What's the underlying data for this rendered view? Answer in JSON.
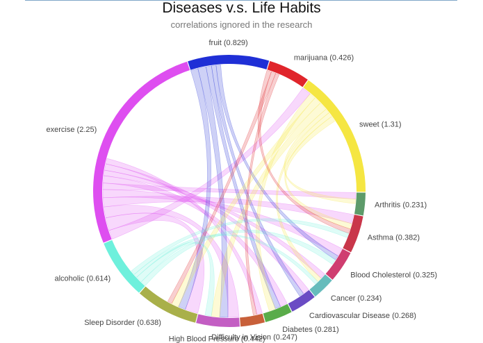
{
  "chart_data": {
    "type": "chord",
    "title": "Diseases v.s. Life Habits",
    "subtitle": "correlations ignored in the research",
    "groups": [
      {
        "name": "fruit",
        "label": "fruit (0.829)",
        "value": 0.829,
        "color": "#1f2fd6"
      },
      {
        "name": "marijuana",
        "label": "marijuana (0.426)",
        "value": 0.426,
        "color": "#e0252b"
      },
      {
        "name": "sweet",
        "label": "sweet (1.31)",
        "value": 1.31,
        "color": "#f5e642"
      },
      {
        "name": "Arthritis",
        "label": "Arthritis (0.231)",
        "value": 0.231,
        "color": "#5d9b6a"
      },
      {
        "name": "Asthma",
        "label": "Asthma (0.382)",
        "value": 0.382,
        "color": "#c9364a"
      },
      {
        "name": "Blood Cholesterol",
        "label": "Blood Cholesterol (0.325)",
        "value": 0.325,
        "color": "#cf3e70"
      },
      {
        "name": "Cancer",
        "label": "Cancer (0.234)",
        "value": 0.234,
        "color": "#66bcbc"
      },
      {
        "name": "Cardiovascular Disease",
        "label": "Cardiovascular Disease (0.268)",
        "value": 0.268,
        "color": "#6a4bc4"
      },
      {
        "name": "Diabetes",
        "label": "Diabetes (0.281)",
        "value": 0.281,
        "color": "#5aac4a"
      },
      {
        "name": "Difficulty in Vision",
        "label": "Difficulty in Vision (0.247)",
        "value": 0.247,
        "color": "#c8603a"
      },
      {
        "name": "High Blood Pressure",
        "label": "High Blood Pressure (0.442)",
        "value": 0.442,
        "color": "#c35ec3"
      },
      {
        "name": "Sleep Disorder",
        "label": "Sleep Disorder (0.638)",
        "value": 0.638,
        "color": "#a9b04a"
      },
      {
        "name": "alcoholic",
        "label": "alcoholic (0.614)",
        "value": 0.614,
        "color": "#6ef0dc"
      },
      {
        "name": "exercise",
        "label": "exercise (2.25)",
        "value": 2.25,
        "color": "#de4ef0"
      }
    ],
    "links": [
      {
        "source": "exercise",
        "target": "sweet",
        "value": 0.1
      },
      {
        "source": "exercise",
        "target": "Sleep Disorder",
        "value": 0.14
      },
      {
        "source": "exercise",
        "target": "High Blood Pressure",
        "value": 0.12
      },
      {
        "source": "exercise",
        "target": "Asthma",
        "value": 0.1
      },
      {
        "source": "exercise",
        "target": "Blood Cholesterol",
        "value": 0.09
      },
      {
        "source": "exercise",
        "target": "Arthritis",
        "value": 0.07
      },
      {
        "source": "exercise",
        "target": "Diabetes",
        "value": 0.08
      },
      {
        "source": "exercise",
        "target": "Cancer",
        "value": 0.06
      },
      {
        "source": "exercise",
        "target": "Cardiovascular Disease",
        "value": 0.07
      },
      {
        "source": "exercise",
        "target": "Difficulty in Vision",
        "value": 0.06
      },
      {
        "source": "fruit",
        "target": "Sleep Disorder",
        "value": 0.08
      },
      {
        "source": "fruit",
        "target": "High Blood Pressure",
        "value": 0.09
      },
      {
        "source": "fruit",
        "target": "Diabetes",
        "value": 0.06
      },
      {
        "source": "fruit",
        "target": "Cardiovascular Disease",
        "value": 0.05
      },
      {
        "source": "fruit",
        "target": "Blood Cholesterol",
        "value": 0.05
      },
      {
        "source": "sweet",
        "target": "Diabetes",
        "value": 0.07
      },
      {
        "source": "sweet",
        "target": "Sleep Disorder",
        "value": 0.08
      },
      {
        "source": "sweet",
        "target": "High Blood Pressure",
        "value": 0.09
      },
      {
        "source": "sweet",
        "target": "Arthritis",
        "value": 0.05
      },
      {
        "source": "sweet",
        "target": "Cancer",
        "value": 0.05
      },
      {
        "source": "sweet",
        "target": "Asthma",
        "value": 0.06
      },
      {
        "source": "marijuana",
        "target": "Asthma",
        "value": 0.05
      },
      {
        "source": "marijuana",
        "target": "Sleep Disorder",
        "value": 0.05
      },
      {
        "source": "marijuana",
        "target": "Difficulty in Vision",
        "value": 0.04
      },
      {
        "source": "alcoholic",
        "target": "Blood Cholesterol",
        "value": 0.06
      },
      {
        "source": "alcoholic",
        "target": "High Blood Pressure",
        "value": 0.07
      },
      {
        "source": "alcoholic",
        "target": "Cancer",
        "value": 0.04
      },
      {
        "source": "alcoholic",
        "target": "Asthma",
        "value": 0.05
      }
    ]
  }
}
